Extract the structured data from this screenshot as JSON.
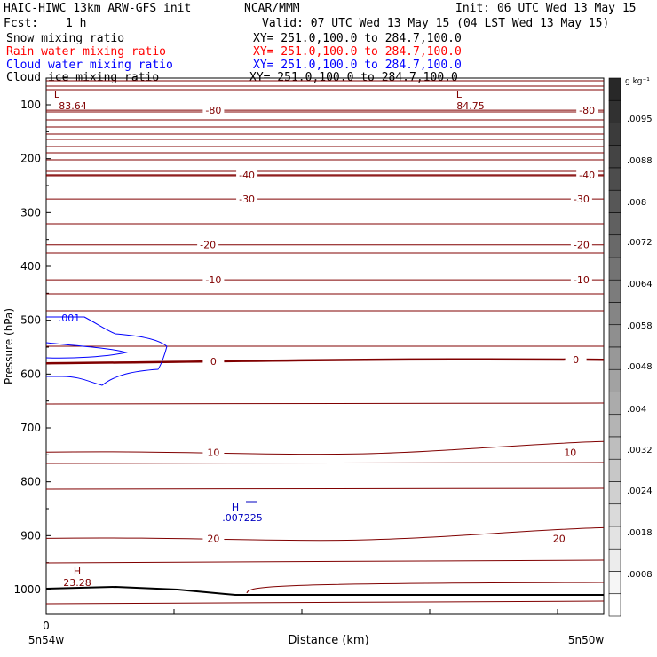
{
  "header": {
    "model": "HAIC-HIWC 13km ARW-GFS init",
    "org": "NCAR/MMM",
    "init": "Init: 06 UTC Wed 13 May 15",
    "fcst_label": "Fcst:",
    "fcst_value": "1 h",
    "valid": "Valid: 07 UTC Wed 13 May 15 (04 LST Wed 13 May 15)"
  },
  "fields": [
    {
      "name": "Snow mixing ratio",
      "xy": "XY= 251.0,100.0 to 284.7,100.0",
      "color": "#000000"
    },
    {
      "name": "Rain water mixing ratio",
      "xy": "XY= 251.0,100.0 to 284.7,100.0",
      "color": "#ff0000"
    },
    {
      "name": "Cloud water mixing ratio",
      "xy": "XY= 251.0,100.0 to 284.7,100.0",
      "color": "#0000ff"
    },
    {
      "name": "Cloud ice mixing ratio",
      "xy": "XY= 251.0,100.0 to 284.7,100.0",
      "color": "#000000"
    }
  ],
  "chart_data": {
    "type": "cross-section contour",
    "xlabel": "Distance (km)",
    "ylabel": "Pressure (hPa)",
    "x_start_tick": "0",
    "x_left_label": "5n54w",
    "x_right_label": "5n50w",
    "y_axis_inverted": true,
    "y_ticks": [
      100,
      200,
      300,
      400,
      500,
      600,
      700,
      800,
      900,
      1000
    ],
    "temperature_color": "#800000",
    "temperature_contours": [
      {
        "label": "-80",
        "y": 110,
        "positions": [
          0.3,
          0.97
        ]
      },
      {
        "label": "-40",
        "y": 230,
        "positions": [
          0.36,
          0.97
        ]
      },
      {
        "label": "-30",
        "y": 275,
        "positions": [
          0.36,
          0.96
        ]
      },
      {
        "label": "-20",
        "y": 360,
        "positions": [
          0.29,
          0.96
        ]
      },
      {
        "label": "-10",
        "y": 425,
        "positions": [
          0.3,
          0.96
        ]
      },
      {
        "label": "0",
        "y": 580,
        "positions": [
          0.3,
          0.95
        ]
      },
      {
        "label": "10",
        "y": 745,
        "positions": [
          0.3,
          0.94
        ]
      },
      {
        "label": "20",
        "y": 905,
        "positions": [
          0.3,
          0.92
        ]
      }
    ],
    "extremes": [
      {
        "letter": "L",
        "value": "83.64",
        "color": "#800000"
      },
      {
        "letter": "L",
        "value": "84.75",
        "color": "#800000"
      },
      {
        "letter": "H",
        "value": "23.28",
        "color": "#800000"
      },
      {
        "letter": "H",
        "value": ".007225",
        "color": "#0000c0"
      }
    ],
    "cloud_water_label": ".001",
    "colorbar": {
      "unit": "g kg⁻¹",
      "labels": [
        ".0095",
        ".0088",
        ".008",
        ".0072",
        ".0064",
        ".0058",
        ".0048",
        ".004",
        ".0032",
        ".0024",
        ".0018",
        ".0008"
      ]
    }
  }
}
